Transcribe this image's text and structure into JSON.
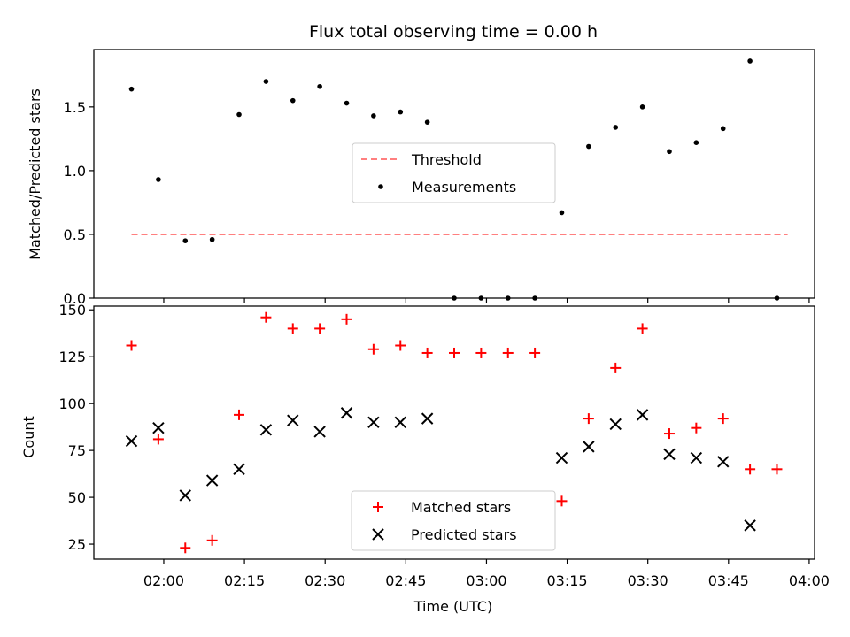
{
  "chart_data": [
    {
      "type": "scatter",
      "title": "Flux total observing time = 0.00 h",
      "ylabel": "Matched/Predicted stars",
      "xlabel": "",
      "ylim": [
        0,
        1.95
      ],
      "yticks": [
        "0.0",
        "0.5",
        "1.0",
        "1.5"
      ],
      "ytick_values": [
        0,
        0.5,
        1.0,
        1.5
      ],
      "legend_position": "center",
      "series": [
        {
          "name": "Threshold",
          "style": "dashed-line",
          "color": "#ff7f7f",
          "x": [
            "01:54",
            "03:56"
          ],
          "y": [
            0.5,
            0.5
          ]
        },
        {
          "name": "Measurements",
          "style": "dot",
          "color": "#000000",
          "x": [
            "01:54",
            "01:59",
            "02:04",
            "02:09",
            "02:14",
            "02:19",
            "02:24",
            "02:29",
            "02:34",
            "02:39",
            "02:44",
            "02:49",
            "02:54",
            "02:59",
            "03:04",
            "03:09",
            "03:14",
            "03:19",
            "03:24",
            "03:29",
            "03:34",
            "03:39",
            "03:44",
            "03:49",
            "03:54"
          ],
          "y": [
            1.64,
            0.93,
            0.45,
            0.46,
            1.44,
            1.7,
            1.55,
            1.66,
            1.53,
            1.43,
            1.46,
            1.38,
            0.0,
            0.0,
            0.0,
            0.0,
            0.67,
            1.19,
            1.34,
            1.5,
            1.15,
            1.22,
            1.33,
            1.86,
            0.0
          ]
        }
      ]
    },
    {
      "type": "scatter",
      "title": "",
      "xlabel": "Time (UTC)",
      "ylabel": "Count",
      "ylim": [
        17,
        152
      ],
      "xlim": [
        "01:47",
        "04:01"
      ],
      "yticks": [
        "25",
        "50",
        "75",
        "100",
        "125",
        "150"
      ],
      "ytick_values": [
        25,
        50,
        75,
        100,
        125,
        150
      ],
      "xticks": [
        "02:00",
        "02:15",
        "02:30",
        "02:45",
        "03:00",
        "03:15",
        "03:30",
        "03:45",
        "04:00"
      ],
      "legend_position": "lower center",
      "series": [
        {
          "name": "Matched stars",
          "style": "plus",
          "color": "#ff0000",
          "x": [
            "01:54",
            "01:59",
            "02:04",
            "02:09",
            "02:14",
            "02:19",
            "02:24",
            "02:29",
            "02:34",
            "02:39",
            "02:44",
            "02:49",
            "02:54",
            "02:59",
            "03:04",
            "03:09",
            "03:14",
            "03:19",
            "03:24",
            "03:29",
            "03:34",
            "03:39",
            "03:44",
            "03:49",
            "03:54"
          ],
          "y": [
            131,
            81,
            23,
            27,
            94,
            146,
            140,
            140,
            145,
            129,
            131,
            127,
            127,
            127,
            127,
            127,
            48,
            92,
            119,
            140,
            84,
            87,
            92,
            65,
            65
          ]
        },
        {
          "name": "Predicted stars",
          "style": "x",
          "color": "#000000",
          "x": [
            "01:54",
            "01:59",
            "02:04",
            "02:09",
            "02:14",
            "02:19",
            "02:24",
            "02:29",
            "02:34",
            "02:39",
            "02:44",
            "02:49",
            "03:14",
            "03:19",
            "03:24",
            "03:29",
            "03:34",
            "03:39",
            "03:44",
            "03:49"
          ],
          "y": [
            80,
            87,
            51,
            59,
            65,
            86,
            91,
            85,
            95,
            90,
            90,
            92,
            71,
            77,
            89,
            94,
            73,
            71,
            69,
            35
          ]
        }
      ]
    }
  ]
}
